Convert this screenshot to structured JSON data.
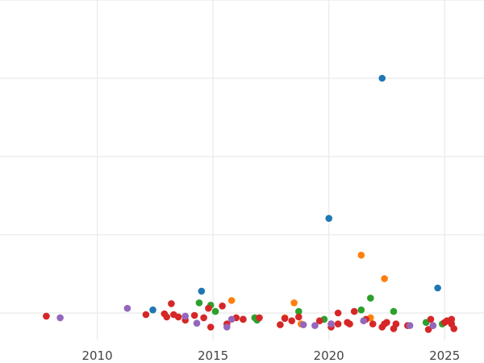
{
  "chart_data": {
    "type": "scatter",
    "title": "",
    "xlabel": "",
    "ylabel": "",
    "xlim": [
      2005.8,
      2026.7
    ],
    "ylim": [
      -3.5,
      40
    ],
    "grid": true,
    "legend": "none",
    "x_ticks": [
      2010,
      2015,
      2020,
      2025
    ],
    "x_tick_labels": [
      "2010",
      "2015",
      "2020",
      "2025"
    ],
    "y_gridlines": [
      0,
      10,
      20,
      30,
      40
    ],
    "y_tick_labels": [],
    "colors": {
      "blue": "#1f77b4",
      "orange": "#ff7f0e",
      "green": "#2ca02c",
      "red": "#d62728",
      "purple": "#9467bd",
      "grid": "#ebebeb",
      "tick_text": "#444444"
    },
    "series": [
      {
        "color_key": "blue",
        "points": [
          [
            2012.4,
            0.4
          ],
          [
            2014.5,
            2.8
          ],
          [
            2020.0,
            12.1
          ],
          [
            2022.3,
            30.0
          ],
          [
            2024.7,
            3.2
          ]
        ]
      },
      {
        "color_key": "orange",
        "points": [
          [
            2015.8,
            1.6
          ],
          [
            2018.1,
            -0.6
          ],
          [
            2018.5,
            1.3
          ],
          [
            2018.8,
            -1.4
          ],
          [
            2021.4,
            7.4
          ],
          [
            2021.8,
            -0.6
          ],
          [
            2022.4,
            4.4
          ]
        ]
      },
      {
        "color_key": "green",
        "points": [
          [
            2014.4,
            1.3
          ],
          [
            2014.9,
            1.0
          ],
          [
            2015.1,
            0.2
          ],
          [
            2016.3,
            -0.8
          ],
          [
            2016.8,
            -0.6
          ],
          [
            2016.9,
            -0.9
          ],
          [
            2018.7,
            0.2
          ],
          [
            2019.8,
            -0.8
          ],
          [
            2021.4,
            0.4
          ],
          [
            2021.8,
            1.9
          ],
          [
            2022.8,
            0.2
          ],
          [
            2024.2,
            -1.2
          ],
          [
            2024.9,
            -1.4
          ]
        ]
      },
      {
        "color_key": "red",
        "points": [
          [
            2007.8,
            -0.4
          ],
          [
            2012.1,
            -0.2
          ],
          [
            2012.9,
            -0.1
          ],
          [
            2013.0,
            -0.5
          ],
          [
            2013.2,
            1.2
          ],
          [
            2013.3,
            -0.2
          ],
          [
            2013.5,
            -0.5
          ],
          [
            2013.8,
            -0.9
          ],
          [
            2014.2,
            -0.3
          ],
          [
            2014.6,
            -0.6
          ],
          [
            2014.8,
            0.6
          ],
          [
            2014.9,
            -1.8
          ],
          [
            2015.4,
            0.9
          ],
          [
            2015.6,
            -1.4
          ],
          [
            2016.0,
            -0.6
          ],
          [
            2016.3,
            -0.8
          ],
          [
            2017.0,
            -0.6
          ],
          [
            2017.9,
            -1.5
          ],
          [
            2018.1,
            -0.7
          ],
          [
            2018.4,
            -1.0
          ],
          [
            2018.7,
            -0.5
          ],
          [
            2019.6,
            -1.0
          ],
          [
            2020.1,
            -1.8
          ],
          [
            2020.1,
            -1.4
          ],
          [
            2020.4,
            0.0
          ],
          [
            2020.4,
            -1.4
          ],
          [
            2020.8,
            -1.2
          ],
          [
            2020.9,
            -1.4
          ],
          [
            2021.1,
            0.2
          ],
          [
            2021.6,
            -0.8
          ],
          [
            2021.9,
            -1.4
          ],
          [
            2022.3,
            -1.8
          ],
          [
            2022.4,
            -1.4
          ],
          [
            2022.5,
            -1.2
          ],
          [
            2022.8,
            -2.0
          ],
          [
            2022.9,
            -1.4
          ],
          [
            2023.4,
            -1.6
          ],
          [
            2024.3,
            -2.1
          ],
          [
            2024.4,
            -0.8
          ],
          [
            2024.5,
            -1.6
          ],
          [
            2025.0,
            -1.2
          ],
          [
            2025.1,
            -1.0
          ],
          [
            2025.3,
            -0.8
          ],
          [
            2025.3,
            -1.4
          ],
          [
            2025.4,
            -2.0
          ]
        ]
      },
      {
        "color_key": "purple",
        "points": [
          [
            2008.4,
            -0.6
          ],
          [
            2011.3,
            0.6
          ],
          [
            2013.8,
            -0.4
          ],
          [
            2014.3,
            -1.3
          ],
          [
            2015.6,
            -1.8
          ],
          [
            2015.8,
            -0.8
          ],
          [
            2018.9,
            -1.5
          ],
          [
            2019.4,
            -1.6
          ],
          [
            2020.1,
            -1.4
          ],
          [
            2021.5,
            -1.0
          ],
          [
            2023.5,
            -1.6
          ],
          [
            2024.5,
            -1.6
          ]
        ]
      }
    ]
  }
}
